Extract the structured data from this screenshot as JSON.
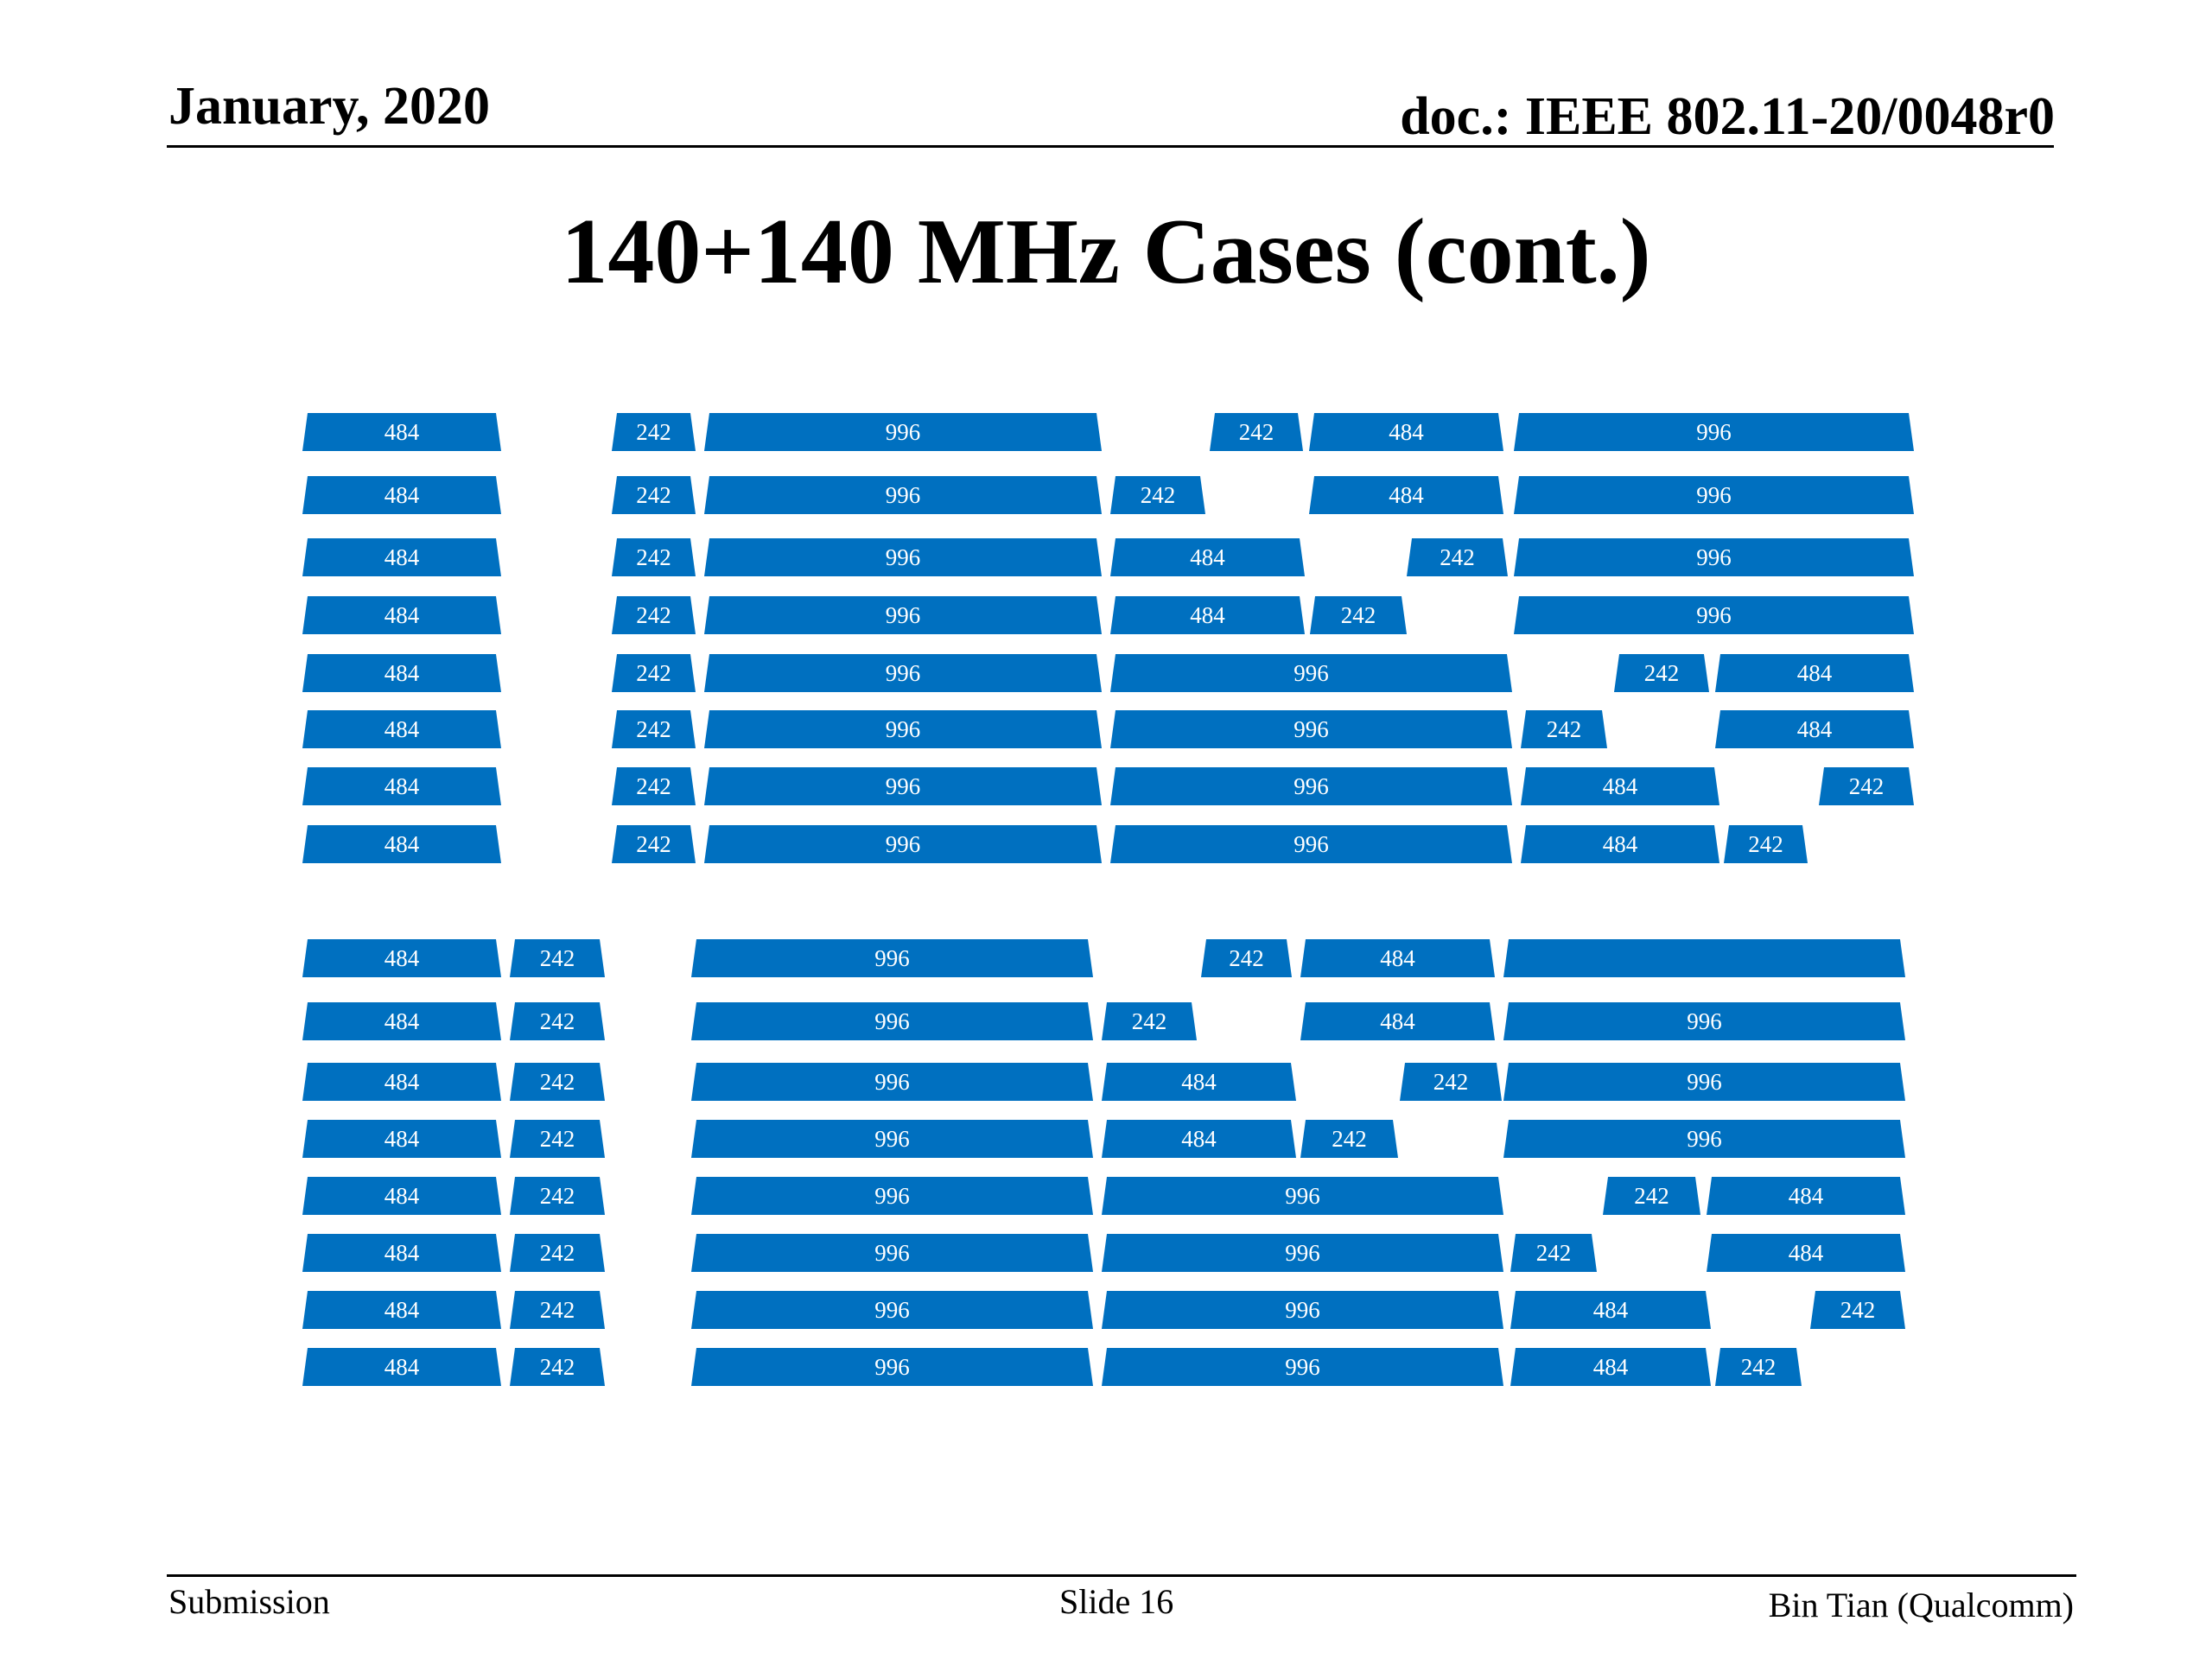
{
  "header": {
    "date": "January, 2020",
    "doc": "doc.: IEEE 802.11-20/0048r0"
  },
  "title": "140+140 MHz Cases (cont.)",
  "colors": {
    "ru_block": "#0070C0",
    "ru_text": "#ffffff"
  },
  "diagram": {
    "upper_rows": [
      [
        "484",
        "242",
        "996",
        "242",
        "484",
        "996"
      ],
      [
        "484",
        "242",
        "996",
        "242",
        "484",
        "996"
      ],
      [
        "484",
        "242",
        "996",
        "484",
        "242",
        "996"
      ],
      [
        "484",
        "242",
        "996",
        "484",
        "242",
        "996"
      ],
      [
        "484",
        "242",
        "996",
        "996",
        "242",
        "484"
      ],
      [
        "484",
        "242",
        "996",
        "996",
        "242",
        "484"
      ],
      [
        "484",
        "242",
        "996",
        "996",
        "484",
        "242"
      ],
      [
        "484",
        "242",
        "996",
        "996",
        "484",
        "242"
      ]
    ],
    "lower_rows": [
      [
        "484",
        "242",
        "996",
        "242",
        "484",
        ""
      ],
      [
        "484",
        "242",
        "996",
        "242",
        "484",
        "996"
      ],
      [
        "484",
        "242",
        "996",
        "484",
        "242",
        "996"
      ],
      [
        "484",
        "242",
        "996",
        "484",
        "242",
        "996"
      ],
      [
        "484",
        "242",
        "996",
        "996",
        "242",
        "484"
      ],
      [
        "484",
        "242",
        "996",
        "996",
        "242",
        "484"
      ],
      [
        "484",
        "242",
        "996",
        "996",
        "484",
        "242"
      ],
      [
        "484",
        "242",
        "996",
        "996",
        "484",
        "242"
      ]
    ]
  },
  "footer": {
    "left": "Submission",
    "center": "Slide 16",
    "right": "Bin Tian (Qualcomm)"
  }
}
